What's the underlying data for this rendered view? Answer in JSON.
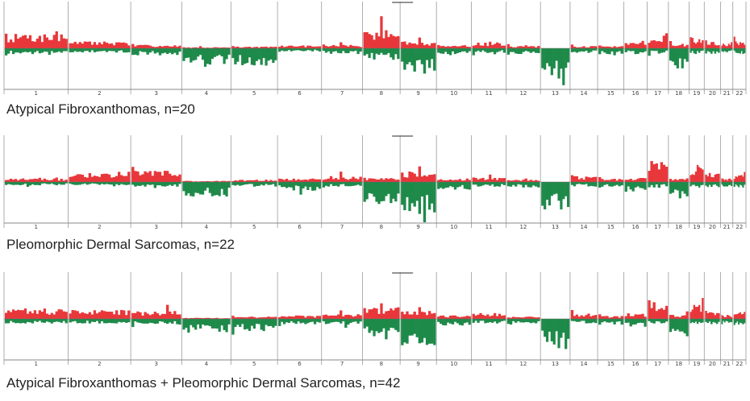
{
  "colors": {
    "gain": "#e8373a",
    "loss": "#1e8a4a",
    "axis": "#888888",
    "divider": "#9a9a9a"
  },
  "chromosomes": [
    "1",
    "2",
    "3",
    "4",
    "5",
    "6",
    "7",
    "8",
    "9",
    "10",
    "11",
    "12",
    "13",
    "14",
    "15",
    "16",
    "17",
    "18",
    "19",
    "20",
    "21",
    "22"
  ],
  "chrom_lengths_mb": [
    249,
    243,
    198,
    191,
    181,
    171,
    159,
    146,
    141,
    136,
    135,
    133,
    115,
    107,
    102,
    90,
    83,
    80,
    59,
    63,
    48,
    51
  ],
  "panels": [
    {
      "caption": "Atypical Fibroxanthomas, n=20"
    },
    {
      "caption": "Pleomorphic Dermal Sarcomas, n=22"
    },
    {
      "caption": "Atypical Fibroxanthomas + Pleomorphic Dermal Sarcomas, n=42"
    }
  ],
  "chart_data": [
    {
      "type": "area",
      "title": "Atypical Fibroxanthomas, n=20",
      "categories": [
        "1",
        "2",
        "3",
        "4",
        "5",
        "6",
        "7",
        "8",
        "9",
        "10",
        "11",
        "12",
        "13",
        "14",
        "15",
        "16",
        "17",
        "18",
        "19",
        "20",
        "21",
        "22"
      ],
      "series": [
        {
          "name": "gain",
          "values": [
            0.25,
            0.12,
            0.06,
            0.02,
            0.03,
            0.05,
            0.06,
            0.32,
            0.12,
            0.06,
            0.1,
            0.04,
            0.0,
            0.04,
            0.04,
            0.1,
            0.22,
            0.08,
            0.2,
            0.12,
            0.08,
            0.12
          ]
        },
        {
          "name": "loss",
          "values": [
            0.1,
            0.08,
            0.12,
            0.28,
            0.3,
            0.06,
            0.1,
            0.2,
            0.4,
            0.12,
            0.08,
            0.1,
            0.55,
            0.08,
            0.12,
            0.1,
            0.1,
            0.35,
            0.1,
            0.12,
            0.08,
            0.1
          ]
        }
      ]
    },
    {
      "type": "area",
      "title": "Pleomorphic Dermal Sarcomas, n=22",
      "categories": [
        "1",
        "2",
        "3",
        "4",
        "5",
        "6",
        "7",
        "8",
        "9",
        "10",
        "11",
        "12",
        "13",
        "14",
        "15",
        "16",
        "17",
        "18",
        "19",
        "20",
        "21",
        "22"
      ],
      "series": [
        {
          "name": "gain",
          "values": [
            0.06,
            0.18,
            0.2,
            0.02,
            0.04,
            0.06,
            0.1,
            0.08,
            0.18,
            0.06,
            0.08,
            0.04,
            0.0,
            0.1,
            0.06,
            0.08,
            0.4,
            0.06,
            0.3,
            0.16,
            0.06,
            0.12
          ]
        },
        {
          "name": "loss",
          "values": [
            0.06,
            0.06,
            0.08,
            0.25,
            0.08,
            0.15,
            0.08,
            0.38,
            0.55,
            0.14,
            0.08,
            0.1,
            0.5,
            0.08,
            0.1,
            0.18,
            0.1,
            0.32,
            0.1,
            0.1,
            0.08,
            0.1
          ]
        }
      ]
    },
    {
      "type": "area",
      "title": "Atypical Fibroxanthomas + Pleomorphic Dermal Sarcomas, n=42",
      "categories": [
        "1",
        "2",
        "3",
        "4",
        "5",
        "6",
        "7",
        "8",
        "9",
        "10",
        "11",
        "12",
        "13",
        "14",
        "15",
        "16",
        "17",
        "18",
        "19",
        "20",
        "21",
        "22"
      ],
      "series": [
        {
          "name": "gain",
          "values": [
            0.18,
            0.16,
            0.14,
            0.02,
            0.04,
            0.06,
            0.08,
            0.2,
            0.14,
            0.06,
            0.1,
            0.04,
            0.0,
            0.08,
            0.05,
            0.1,
            0.32,
            0.07,
            0.26,
            0.14,
            0.07,
            0.12
          ]
        },
        {
          "name": "loss",
          "values": [
            0.08,
            0.08,
            0.1,
            0.24,
            0.22,
            0.1,
            0.1,
            0.3,
            0.48,
            0.12,
            0.08,
            0.1,
            0.52,
            0.08,
            0.1,
            0.14,
            0.1,
            0.34,
            0.1,
            0.1,
            0.08,
            0.1
          ]
        }
      ]
    }
  ]
}
